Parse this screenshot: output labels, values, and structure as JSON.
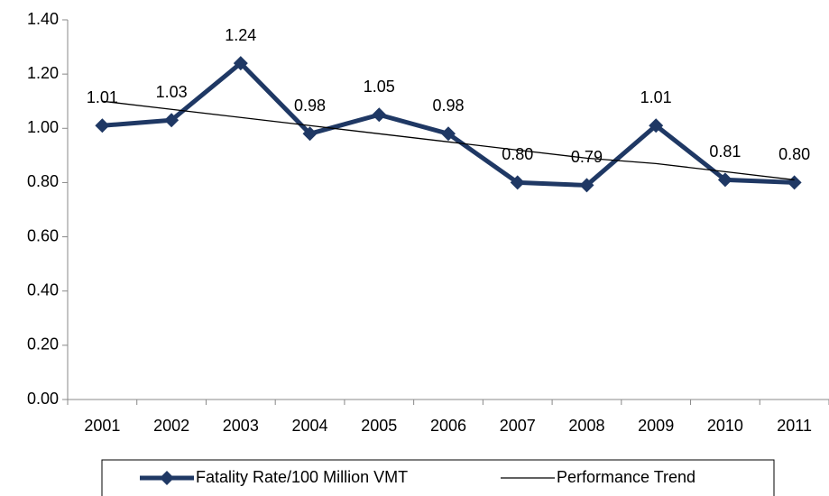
{
  "chart_data": {
    "type": "line",
    "categories": [
      "2001",
      "2002",
      "2003",
      "2004",
      "2005",
      "2006",
      "2007",
      "2008",
      "2009",
      "2010",
      "2011"
    ],
    "series": [
      {
        "name": "Fatality Rate/100 Million VMT",
        "color": "#1f3864",
        "values": [
          1.01,
          1.03,
          1.24,
          0.98,
          1.05,
          0.98,
          0.8,
          0.79,
          1.01,
          0.81,
          0.8
        ],
        "value_labels": [
          "1.01",
          "1.03",
          "1.24",
          "0.98",
          "1.05",
          "0.98",
          "0.80",
          "0.79",
          "1.01",
          "0.81",
          "0.80"
        ]
      },
      {
        "name": "Performance Trend",
        "color": "#000000",
        "values": [
          1.1,
          1.07,
          1.04,
          1.01,
          0.98,
          0.95,
          0.92,
          0.89,
          0.87,
          0.84,
          0.81
        ]
      }
    ],
    "ylim": [
      0,
      1.4
    ],
    "yticks": [
      {
        "value": 0,
        "label": "0.00"
      },
      {
        "value": 0.2,
        "label": "0.20"
      },
      {
        "value": 0.4,
        "label": "0.40"
      },
      {
        "value": 0.6,
        "label": "0.60"
      },
      {
        "value": 0.8,
        "label": "0.80"
      },
      {
        "value": 1.0,
        "label": "1.00"
      },
      {
        "value": 1.2,
        "label": "1.20"
      },
      {
        "value": 1.4,
        "label": "1.40"
      }
    ],
    "legend": "bottom"
  }
}
